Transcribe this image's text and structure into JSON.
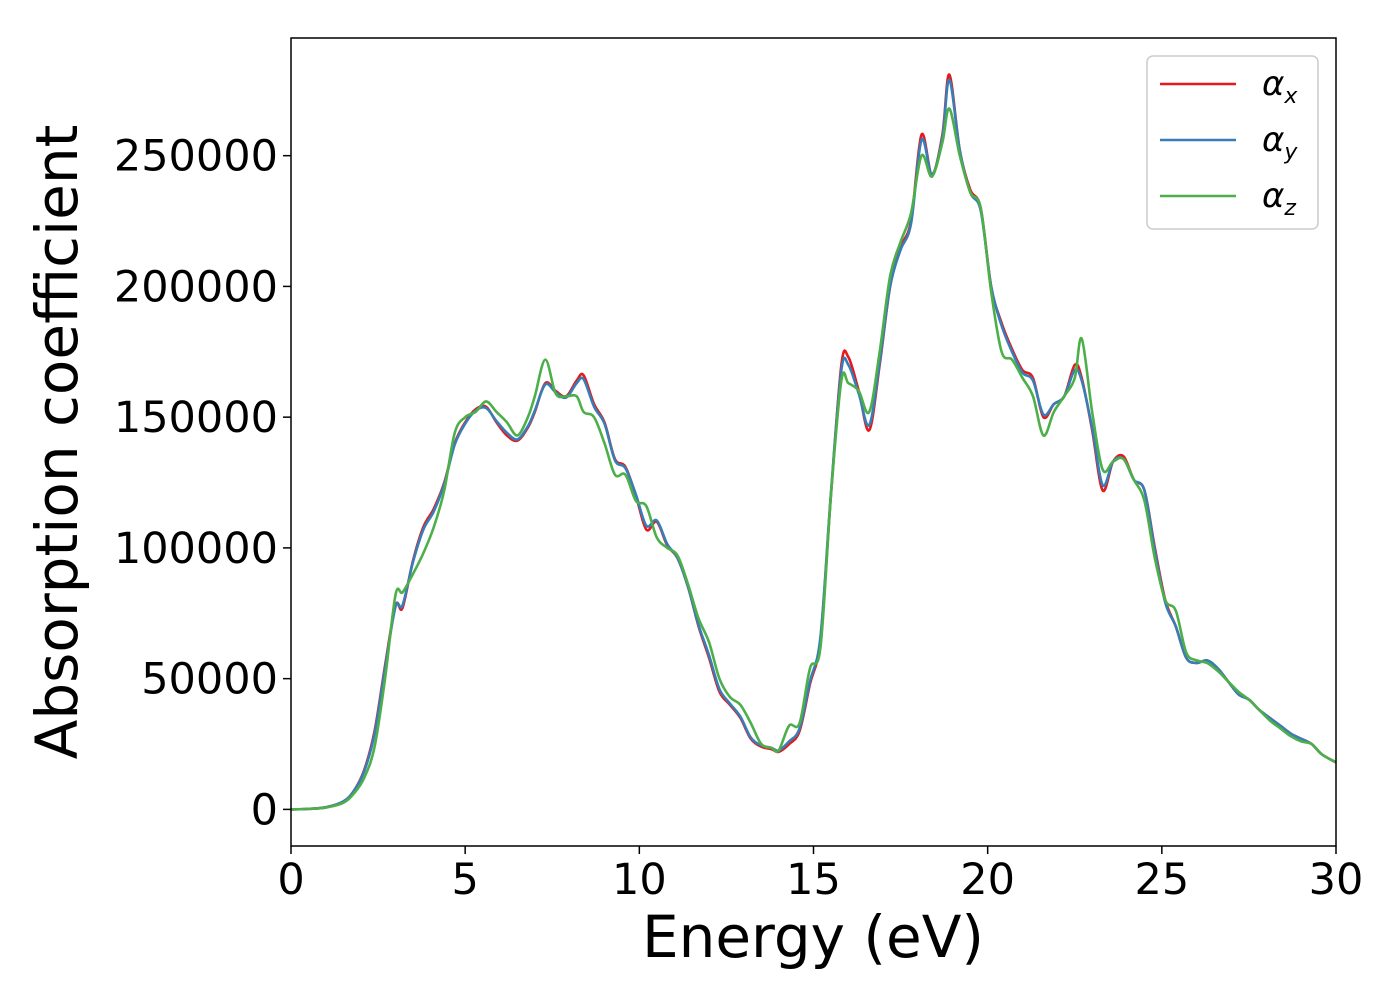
{
  "chart_data": {
    "type": "line",
    "xlabel": "Energy (eV)",
    "ylabel": "Absorption coefficient",
    "xlim": [
      0,
      30
    ],
    "ylim": [
      -14000,
      295000
    ],
    "xticks": [
      "0",
      "5",
      "10",
      "15",
      "20",
      "25",
      "30"
    ],
    "yticks": [
      "0",
      "50000",
      "100000",
      "150000",
      "200000",
      "250000"
    ],
    "grid": false,
    "legend_position": "top-right",
    "x": [
      0,
      0.5,
      1,
      1.5,
      1.8,
      2.1,
      2.4,
      2.7,
      3.0,
      3.2,
      3.5,
      3.8,
      4.1,
      4.4,
      4.7,
      5.0,
      5.3,
      5.6,
      5.9,
      6.2,
      6.5,
      6.8,
      7.0,
      7.3,
      7.6,
      7.9,
      8.2,
      8.4,
      8.7,
      9.0,
      9.3,
      9.6,
      9.9,
      10.2,
      10.5,
      10.8,
      11.1,
      11.4,
      11.7,
      12.0,
      12.3,
      12.6,
      12.9,
      13.2,
      13.5,
      13.8,
      14.0,
      14.3,
      14.6,
      14.9,
      15.2,
      15.5,
      15.8,
      16.0,
      16.3,
      16.6,
      16.9,
      17.2,
      17.5,
      17.8,
      18.1,
      18.4,
      18.7,
      18.9,
      19.2,
      19.5,
      19.8,
      20.1,
      20.4,
      20.7,
      21.0,
      21.3,
      21.6,
      21.9,
      22.2,
      22.5,
      22.7,
      23.0,
      23.3,
      23.6,
      23.9,
      24.2,
      24.5,
      24.8,
      25.1,
      25.4,
      25.7,
      26.0,
      26.3,
      26.6,
      26.9,
      27.2,
      27.5,
      27.8,
      28.1,
      28.4,
      28.7,
      29.0,
      29.3,
      29.6,
      30.0
    ],
    "series": [
      {
        "name": "α_x",
        "color": "#e41a1c",
        "values": [
          0,
          200,
          800,
          3000,
          7000,
          15000,
          30000,
          55000,
          78000,
          77000,
          95000,
          108000,
          115000,
          125000,
          140000,
          148000,
          153000,
          154000,
          148000,
          143000,
          141000,
          146000,
          152000,
          163000,
          160000,
          158000,
          164000,
          166000,
          155000,
          148000,
          134000,
          131000,
          120000,
          107000,
          110000,
          101000,
          96000,
          85000,
          70000,
          58000,
          45000,
          40000,
          35000,
          27000,
          24000,
          23000,
          22000,
          25000,
          30000,
          48000,
          65000,
          120000,
          170000,
          173000,
          160000,
          145000,
          170000,
          200000,
          215000,
          225000,
          258000,
          243000,
          258000,
          281000,
          252000,
          237000,
          230000,
          200000,
          186000,
          176000,
          168000,
          165000,
          150000,
          155000,
          158000,
          170000,
          165000,
          145000,
          122000,
          133000,
          135000,
          126000,
          122000,
          100000,
          80000,
          70000,
          58000,
          56000,
          57000,
          54000,
          49000,
          44000,
          42000,
          38000,
          35000,
          32000,
          29000,
          27000,
          25000,
          21000,
          18000
        ]
      },
      {
        "name": "α_y",
        "color": "#377eb8",
        "values": [
          0,
          200,
          800,
          3000,
          7000,
          14500,
          29000,
          54000,
          77500,
          78000,
          94500,
          107000,
          114000,
          124500,
          139500,
          147500,
          152500,
          153500,
          148500,
          144000,
          141500,
          146500,
          152500,
          162500,
          159500,
          157500,
          163000,
          164500,
          154000,
          147500,
          133500,
          130500,
          120500,
          108500,
          110500,
          101500,
          96000,
          85000,
          70500,
          59000,
          46000,
          40500,
          35500,
          27500,
          24500,
          23500,
          22500,
          26000,
          31000,
          49000,
          66000,
          121000,
          168000,
          170000,
          159000,
          147000,
          171000,
          200000,
          214000,
          224000,
          256000,
          243000,
          257000,
          279000,
          252000,
          236000,
          229000,
          200000,
          185000,
          175000,
          167000,
          164000,
          151000,
          155000,
          158000,
          168000,
          164000,
          146000,
          124000,
          133000,
          134000,
          126000,
          122000,
          99000,
          79000,
          70000,
          58000,
          56000,
          57000,
          54000,
          49000,
          44000,
          42000,
          38000,
          35000,
          32000,
          29000,
          27000,
          25000,
          21000,
          18000
        ]
      },
      {
        "name": "α_z",
        "color": "#4daf4a",
        "values": [
          0,
          200,
          700,
          2500,
          6000,
          12000,
          24000,
          50000,
          82000,
          83000,
          90000,
          98000,
          108000,
          122000,
          144000,
          150000,
          152000,
          156000,
          152000,
          148000,
          143000,
          150000,
          158000,
          172000,
          159000,
          158000,
          158000,
          152000,
          150000,
          140000,
          128000,
          128000,
          118000,
          116000,
          104000,
          100000,
          97000,
          86000,
          73000,
          64000,
          50000,
          43000,
          40000,
          33000,
          25000,
          23500,
          22500,
          32000,
          33000,
          54000,
          62000,
          120000,
          164000,
          163000,
          160000,
          152000,
          175000,
          204000,
          217000,
          228000,
          250000,
          242000,
          255000,
          268000,
          250000,
          236000,
          230000,
          198000,
          175000,
          172000,
          165000,
          158000,
          143000,
          152000,
          158000,
          165000,
          180000,
          152000,
          130000,
          133000,
          134000,
          126000,
          118000,
          96000,
          80000,
          76000,
          60000,
          57000,
          56000,
          53000,
          49000,
          45000,
          42000,
          38000,
          34000,
          31000,
          28000,
          26000,
          25000,
          21000,
          18000
        ]
      }
    ]
  }
}
